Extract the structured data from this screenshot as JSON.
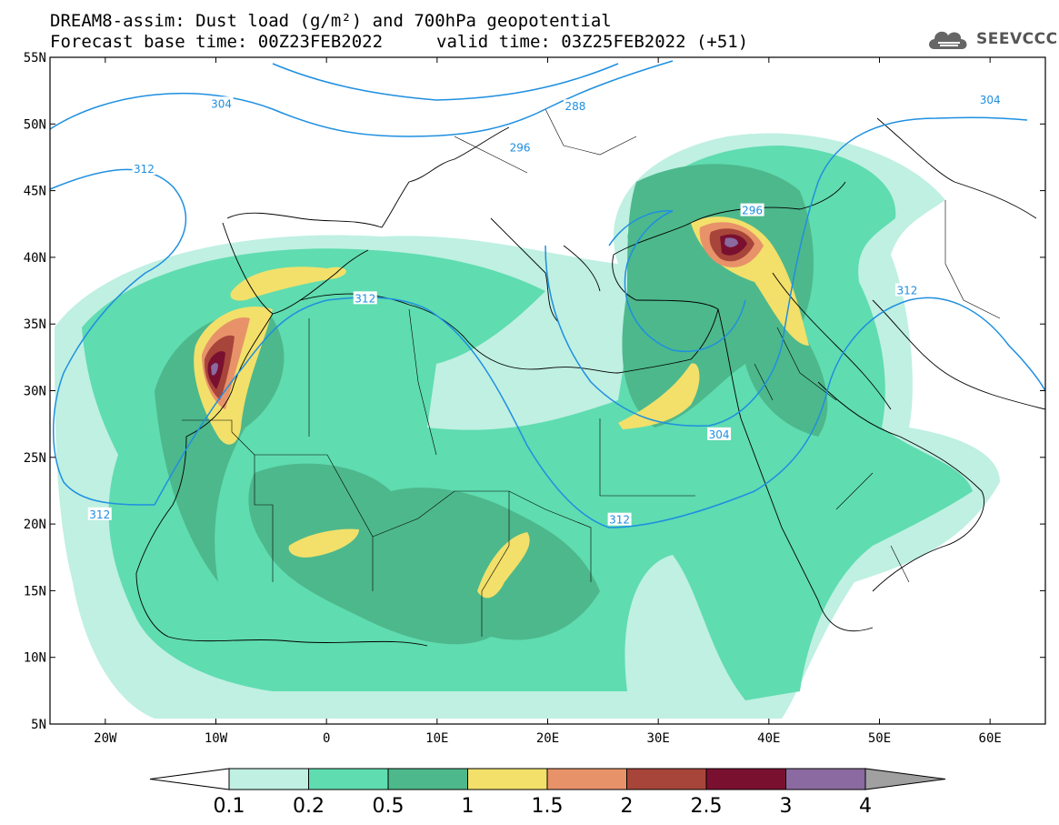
{
  "title": {
    "line1": "DREAM8-assim: Dust load (g/m²) and 700hPa geopotential",
    "line2": "Forecast base time: 00Z23FEB2022",
    "valid": "valid time: 03Z25FEB2022 (+51)"
  },
  "logo": {
    "text": "SEEVCCC",
    "icon": "cloud-icon"
  },
  "map": {
    "lon_range": [
      -25,
      65
    ],
    "lat_range": [
      5,
      55
    ],
    "lat_ticks": [
      {
        "value": 55,
        "label": "55N"
      },
      {
        "value": 50,
        "label": "50N"
      },
      {
        "value": 45,
        "label": "45N"
      },
      {
        "value": 40,
        "label": "40N"
      },
      {
        "value": 35,
        "label": "35N"
      },
      {
        "value": 30,
        "label": "30N"
      },
      {
        "value": 25,
        "label": "25N"
      },
      {
        "value": 20,
        "label": "20N"
      },
      {
        "value": 15,
        "label": "15N"
      },
      {
        "value": 10,
        "label": "10N"
      },
      {
        "value": 5,
        "label": "5N"
      }
    ],
    "lon_ticks": [
      {
        "value": -20,
        "label": "20W"
      },
      {
        "value": -10,
        "label": "10W"
      },
      {
        "value": 0,
        "label": "0"
      },
      {
        "value": 10,
        "label": "10E"
      },
      {
        "value": 20,
        "label": "20E"
      },
      {
        "value": 30,
        "label": "30E"
      },
      {
        "value": 40,
        "label": "40E"
      },
      {
        "value": 50,
        "label": "50E"
      },
      {
        "value": 60,
        "label": "60E"
      }
    ],
    "contour_labels": [
      {
        "text": "304",
        "lon": -9.5,
        "lat": 51.5
      },
      {
        "text": "288",
        "lon": 22.5,
        "lat": 51.3
      },
      {
        "text": "296",
        "lon": 17.5,
        "lat": 48.2
      },
      {
        "text": "312",
        "lon": -16.5,
        "lat": 46.6
      },
      {
        "text": "312",
        "lon": 3.5,
        "lat": 36.9
      },
      {
        "text": "312",
        "lon": -20.5,
        "lat": 20.7
      },
      {
        "text": "312",
        "lon": 26.5,
        "lat": 20.3
      },
      {
        "text": "304",
        "lon": 35.5,
        "lat": 26.7
      },
      {
        "text": "296",
        "lon": 38.5,
        "lat": 43.5
      },
      {
        "text": "312",
        "lon": 52.5,
        "lat": 37.5
      },
      {
        "text": "304",
        "lon": 60.0,
        "lat": 51.8
      }
    ],
    "colors": {
      "contour": "#1f8fe0",
      "c01": "#bff0e2",
      "c02": "#5fdcb0",
      "c05": "#4db88c",
      "c1": "#f2e06a",
      "c15": "#e8926a",
      "c2": "#a8453a",
      "c25": "#7a1030",
      "c3": "#8a6aa0"
    }
  },
  "legend": {
    "labels": [
      "0.1",
      "0.2",
      "0.5",
      "1",
      "1.5",
      "2",
      "2.5",
      "3",
      "4"
    ],
    "colors": [
      "#bff0e2",
      "#5fdcb0",
      "#4db88c",
      "#f2e06a",
      "#e8926a",
      "#a8453a",
      "#7a1030",
      "#8a6aa0"
    ],
    "min_arrow_color": "#ffffff",
    "max_arrow_color": "#a0a0a0"
  }
}
